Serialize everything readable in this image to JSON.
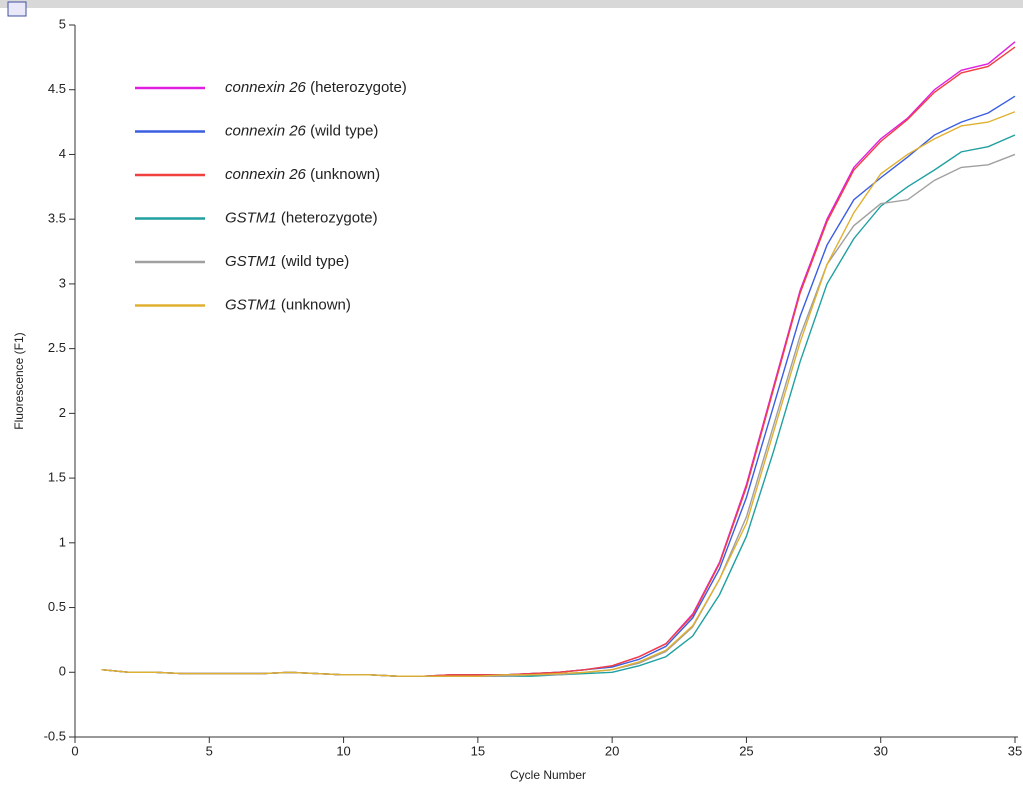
{
  "chart_data": {
    "type": "line",
    "x_label": "Cycle Number",
    "y_label": "Fluorescence (F1)",
    "x": [
      1,
      2,
      3,
      4,
      5,
      6,
      7,
      8,
      9,
      10,
      11,
      12,
      13,
      14,
      15,
      16,
      17,
      18,
      19,
      20,
      21,
      22,
      23,
      24,
      25,
      26,
      27,
      28,
      29,
      30,
      31,
      32,
      33,
      34,
      35
    ],
    "xlim": [
      0,
      35
    ],
    "xticks": [
      0,
      5,
      10,
      15,
      20,
      25,
      30,
      35
    ],
    "ylim": [
      -0.5,
      5
    ],
    "yticks": [
      -0.5,
      0,
      0.5,
      1,
      1.5,
      2,
      2.5,
      3,
      3.5,
      4,
      4.5,
      5
    ],
    "series": [
      {
        "name": "connexin 26 (heterozygote)",
        "color": "#e020e0",
        "values": [
          0.02,
          0,
          0,
          -0.01,
          -0.01,
          -0.01,
          -0.01,
          0,
          -0.01,
          -0.02,
          -0.02,
          -0.03,
          -0.03,
          -0.02,
          -0.02,
          -0.02,
          -0.01,
          0,
          0.02,
          0.05,
          0.12,
          0.22,
          0.45,
          0.85,
          1.45,
          2.2,
          2.95,
          3.5,
          3.9,
          4.12,
          4.28,
          4.5,
          4.65,
          4.7,
          4.87
        ]
      },
      {
        "name": "connexin 26 (wild type)",
        "color": "#3a5ee0",
        "values": [
          0.02,
          0,
          0,
          -0.01,
          -0.01,
          -0.01,
          -0.01,
          0,
          -0.01,
          -0.02,
          -0.02,
          -0.03,
          -0.03,
          -0.02,
          -0.02,
          -0.02,
          -0.01,
          0,
          0.02,
          0.04,
          0.1,
          0.2,
          0.42,
          0.8,
          1.35,
          2.05,
          2.75,
          3.3,
          3.65,
          3.82,
          3.98,
          4.15,
          4.25,
          4.32,
          4.45
        ]
      },
      {
        "name": "connexin 26 (unknown)",
        "color": "#f04040",
        "values": [
          0.02,
          0,
          0,
          -0.01,
          -0.01,
          -0.01,
          -0.01,
          0,
          -0.01,
          -0.02,
          -0.02,
          -0.03,
          -0.03,
          -0.02,
          -0.02,
          -0.02,
          -0.01,
          0,
          0.02,
          0.05,
          0.12,
          0.22,
          0.44,
          0.84,
          1.43,
          2.18,
          2.93,
          3.48,
          3.88,
          4.1,
          4.27,
          4.48,
          4.63,
          4.68,
          4.83
        ]
      },
      {
        "name": "GSTM1 (heterozygote)",
        "color": "#20a0a0",
        "values": [
          0.02,
          0,
          0,
          -0.01,
          -0.01,
          -0.01,
          -0.01,
          0,
          -0.01,
          -0.02,
          -0.02,
          -0.03,
          -0.03,
          -0.03,
          -0.03,
          -0.03,
          -0.03,
          -0.02,
          -0.01,
          0,
          0.05,
          0.12,
          0.28,
          0.6,
          1.05,
          1.7,
          2.4,
          3.0,
          3.35,
          3.6,
          3.75,
          3.88,
          4.02,
          4.06,
          4.15
        ]
      },
      {
        "name": "GSTM1 (wild type)",
        "color": "#a0a0a0",
        "values": [
          0.02,
          0,
          0,
          -0.01,
          -0.01,
          -0.01,
          -0.01,
          0,
          -0.01,
          -0.02,
          -0.02,
          -0.03,
          -0.03,
          -0.03,
          -0.03,
          -0.03,
          -0.02,
          -0.02,
          0,
          0.02,
          0.07,
          0.16,
          0.35,
          0.72,
          1.2,
          1.9,
          2.6,
          3.15,
          3.45,
          3.62,
          3.65,
          3.8,
          3.9,
          3.92,
          4.0
        ]
      },
      {
        "name": "GSTM1 (unknown)",
        "color": "#e0b030",
        "values": [
          0.02,
          0,
          0,
          -0.01,
          -0.01,
          -0.01,
          -0.01,
          0,
          -0.01,
          -0.02,
          -0.02,
          -0.03,
          -0.03,
          -0.03,
          -0.03,
          -0.02,
          -0.02,
          -0.01,
          0,
          0.02,
          0.08,
          0.17,
          0.36,
          0.72,
          1.15,
          1.85,
          2.55,
          3.15,
          3.55,
          3.85,
          4.0,
          4.12,
          4.22,
          4.25,
          4.33
        ]
      }
    ]
  }
}
